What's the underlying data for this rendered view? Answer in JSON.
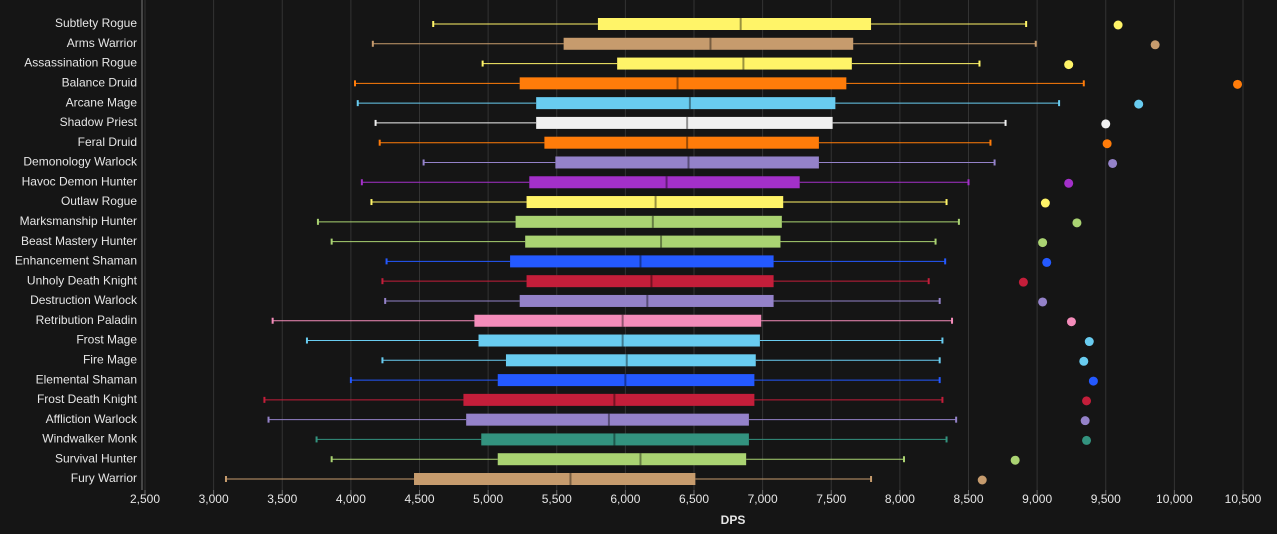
{
  "chart_data": {
    "type": "box",
    "xlabel": "DPS",
    "xlim": [
      2500,
      10500
    ],
    "xticks": [
      {
        "value": 2500,
        "label": "2,500"
      },
      {
        "value": 3000,
        "label": "3,000"
      },
      {
        "value": 3500,
        "label": "3,500"
      },
      {
        "value": 4000,
        "label": "4,000"
      },
      {
        "value": 4500,
        "label": "4,500"
      },
      {
        "value": 5000,
        "label": "5,000"
      },
      {
        "value": 5500,
        "label": "5,500"
      },
      {
        "value": 6000,
        "label": "6,000"
      },
      {
        "value": 6500,
        "label": "6,500"
      },
      {
        "value": 7000,
        "label": "7,000"
      },
      {
        "value": 7500,
        "label": "7,500"
      },
      {
        "value": 8000,
        "label": "8,000"
      },
      {
        "value": 8500,
        "label": "8,500"
      },
      {
        "value": 9000,
        "label": "9,000"
      },
      {
        "value": 9500,
        "label": "9,500"
      },
      {
        "value": 10000,
        "label": "10,000"
      },
      {
        "value": 10500,
        "label": "10,500"
      }
    ],
    "grid": true,
    "categories": [
      "Subtlety Rogue",
      "Arms Warrior",
      "Assassination Rogue",
      "Balance Druid",
      "Arcane Mage",
      "Shadow Priest",
      "Feral Druid",
      "Demonology Warlock",
      "Havoc Demon Hunter",
      "Outlaw Rogue",
      "Marksmanship Hunter",
      "Beast Mastery Hunter",
      "Enhancement Shaman",
      "Unholy Death Knight",
      "Destruction Warlock",
      "Retribution Paladin",
      "Frost Mage",
      "Fire Mage",
      "Elemental Shaman",
      "Frost Death Knight",
      "Affliction Warlock",
      "Windwalker Monk",
      "Survival Hunter",
      "Fury Warrior"
    ],
    "boxes": [
      {
        "low": 4600,
        "q1": 5800,
        "median": 6840,
        "q3": 7790,
        "high": 8920,
        "outlier": 9590,
        "color": "#fff468"
      },
      {
        "low": 4160,
        "q1": 5550,
        "median": 6620,
        "q3": 7660,
        "high": 8990,
        "outlier": 9860,
        "color": "#c69b6d"
      },
      {
        "low": 4960,
        "q1": 5940,
        "median": 6860,
        "q3": 7650,
        "high": 8580,
        "outlier": 9230,
        "color": "#fff468"
      },
      {
        "low": 4030,
        "q1": 5230,
        "median": 6380,
        "q3": 7610,
        "high": 9340,
        "outlier": 10460,
        "color": "#ff7c0a"
      },
      {
        "low": 4050,
        "q1": 5350,
        "median": 6470,
        "q3": 7530,
        "high": 9160,
        "outlier": 9740,
        "color": "#69ccf0"
      },
      {
        "low": 4180,
        "q1": 5350,
        "median": 6450,
        "q3": 7510,
        "high": 8770,
        "outlier": 9500,
        "color": "#f0f0f0"
      },
      {
        "low": 4210,
        "q1": 5410,
        "median": 6450,
        "q3": 7410,
        "high": 8660,
        "outlier": 9510,
        "color": "#ff7c0a"
      },
      {
        "low": 4530,
        "q1": 5490,
        "median": 6460,
        "q3": 7410,
        "high": 8690,
        "outlier": 9550,
        "color": "#9482c9"
      },
      {
        "low": 4080,
        "q1": 5300,
        "median": 6300,
        "q3": 7270,
        "high": 8500,
        "outlier": 9230,
        "color": "#a330c9"
      },
      {
        "low": 4150,
        "q1": 5280,
        "median": 6220,
        "q3": 7150,
        "high": 8340,
        "outlier": 9060,
        "color": "#fff468"
      },
      {
        "low": 3760,
        "q1": 5200,
        "median": 6200,
        "q3": 7140,
        "high": 8430,
        "outlier": 9290,
        "color": "#aad372"
      },
      {
        "low": 3860,
        "q1": 5270,
        "median": 6260,
        "q3": 7130,
        "high": 8260,
        "outlier": 9040,
        "color": "#aad372"
      },
      {
        "low": 4260,
        "q1": 5160,
        "median": 6110,
        "q3": 7080,
        "high": 8330,
        "outlier": 9070,
        "color": "#2459ff"
      },
      {
        "low": 4230,
        "q1": 5280,
        "median": 6190,
        "q3": 7080,
        "high": 8210,
        "outlier": 8900,
        "color": "#c41e3a"
      },
      {
        "low": 4250,
        "q1": 5230,
        "median": 6160,
        "q3": 7080,
        "high": 8290,
        "outlier": 9040,
        "color": "#9482c9"
      },
      {
        "low": 3430,
        "q1": 4900,
        "median": 5980,
        "q3": 6990,
        "high": 8380,
        "outlier": 9250,
        "color": "#f48cba"
      },
      {
        "low": 3680,
        "q1": 4930,
        "median": 5980,
        "q3": 6980,
        "high": 8310,
        "outlier": 9380,
        "color": "#69ccf0"
      },
      {
        "low": 4230,
        "q1": 5130,
        "median": 6010,
        "q3": 6950,
        "high": 8290,
        "outlier": 9340,
        "color": "#69ccf0"
      },
      {
        "low": 4000,
        "q1": 5070,
        "median": 6000,
        "q3": 6940,
        "high": 8290,
        "outlier": 9410,
        "color": "#2459ff"
      },
      {
        "low": 3370,
        "q1": 4820,
        "median": 5920,
        "q3": 6940,
        "high": 8310,
        "outlier": 9360,
        "color": "#c41e3a"
      },
      {
        "low": 3400,
        "q1": 4840,
        "median": 5880,
        "q3": 6900,
        "high": 8410,
        "outlier": 9350,
        "color": "#9482c9"
      },
      {
        "low": 3750,
        "q1": 4950,
        "median": 5920,
        "q3": 6900,
        "high": 8340,
        "outlier": 9360,
        "color": "#33937f"
      },
      {
        "low": 3860,
        "q1": 5070,
        "median": 6110,
        "q3": 6880,
        "high": 8030,
        "outlier": 8840,
        "color": "#aad372"
      },
      {
        "low": 3090,
        "q1": 4460,
        "median": 5600,
        "q3": 6510,
        "high": 7790,
        "outlier": 8600,
        "color": "#c69b6d"
      }
    ]
  }
}
